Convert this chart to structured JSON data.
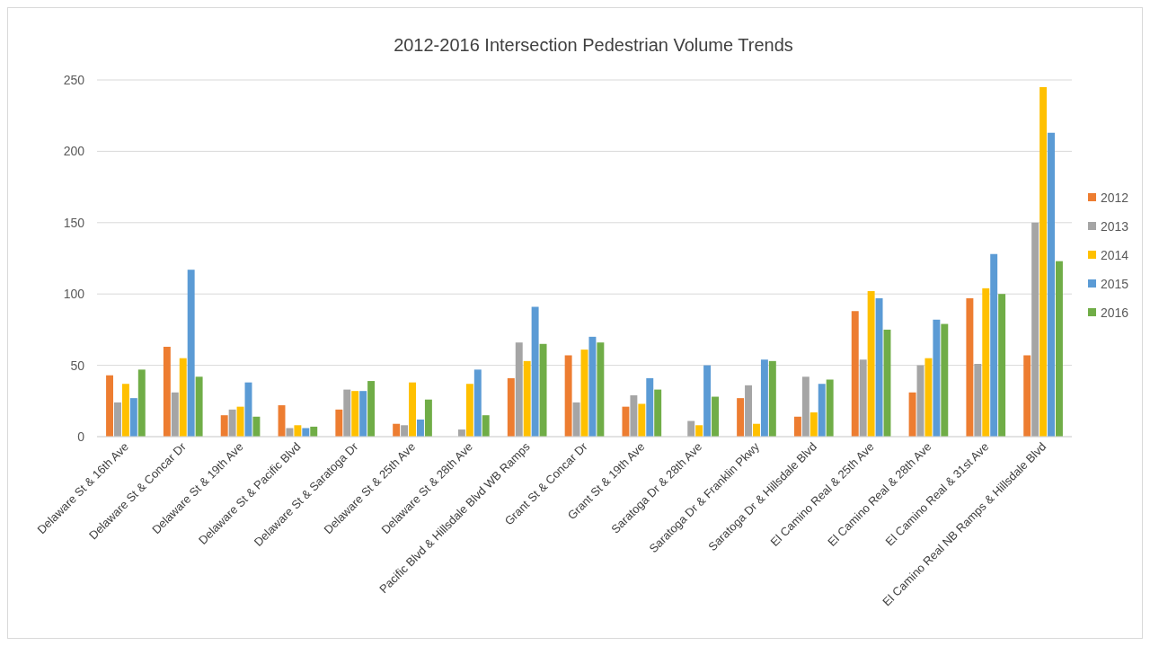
{
  "chart_data": {
    "type": "bar",
    "title": "2012-2016 Intersection Pedestrian Volume Trends",
    "categories": [
      "Delaware St & 16th Ave",
      "Delaware St & Concar Dr",
      "Delaware St & 19th Ave",
      "Delaware St & Pacific Blvd",
      "Delaware St & Saratoga Dr",
      "Delaware St & 25th Ave",
      "Delaware St & 28th Ave",
      "Pacific Blvd & Hillsdale Blvd WB Ramps",
      "Grant St & Concar Dr",
      "Grant St & 19th Ave",
      "Saratoga Dr & 28th Ave",
      "Saratoga Dr & Franklin Pkwy",
      "Saratoga Dr & Hillsdale Blvd",
      "El Camino Real & 25th Ave",
      "El Camino Real & 28th Ave",
      "El Camino Real & 31st Ave",
      "El Camino Real NB Ramps & Hillsdale Blvd"
    ],
    "series": [
      {
        "name": "2012",
        "color": "#ed7d31",
        "values": [
          43,
          63,
          15,
          22,
          19,
          9,
          null,
          41,
          57,
          21,
          null,
          27,
          14,
          88,
          31,
          97,
          57
        ]
      },
      {
        "name": "2013",
        "color": "#a5a5a5",
        "values": [
          24,
          31,
          19,
          6,
          33,
          8,
          5,
          66,
          24,
          29,
          11,
          36,
          42,
          54,
          50,
          51,
          150
        ]
      },
      {
        "name": "2014",
        "color": "#ffc000",
        "values": [
          37,
          55,
          21,
          8,
          32,
          38,
          37,
          53,
          61,
          23,
          8,
          9,
          17,
          102,
          55,
          104,
          245
        ]
      },
      {
        "name": "2015",
        "color": "#5b9bd5",
        "values": [
          27,
          117,
          38,
          6,
          32,
          12,
          47,
          91,
          70,
          41,
          50,
          54,
          37,
          97,
          82,
          128,
          213
        ]
      },
      {
        "name": "2016",
        "color": "#70ad47",
        "values": [
          47,
          42,
          14,
          7,
          39,
          26,
          15,
          65,
          66,
          33,
          28,
          53,
          40,
          75,
          79,
          100,
          123
        ]
      }
    ],
    "ylim": [
      0,
      250
    ],
    "yticks": [
      0,
      50,
      100,
      150,
      200,
      250
    ],
    "grid": "y",
    "legend": "right"
  }
}
